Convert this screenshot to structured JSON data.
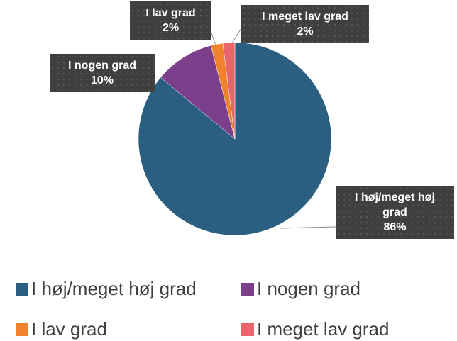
{
  "chart_data": {
    "type": "pie",
    "categories": [
      "I høj/meget høj grad",
      "I nogen grad",
      "I lav grad",
      "I meget lav grad"
    ],
    "values": [
      86,
      10,
      2,
      2
    ],
    "value_labels": [
      "86%",
      "10%",
      "2%",
      "2%"
    ],
    "colors": [
      "#2a5f82",
      "#7b3f8c",
      "#f0822e",
      "#e8666b"
    ],
    "legend": "bottom"
  }
}
